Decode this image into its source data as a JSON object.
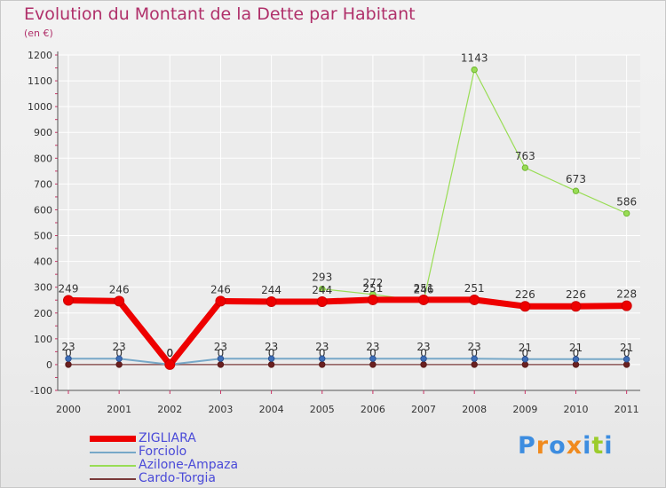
{
  "header": {
    "title": "Evolution du Montant de la Dette par Habitant",
    "subtitle": "(en €)"
  },
  "brand": {
    "logo_text": "Proxiti"
  },
  "colors": {
    "title": "#b0306a",
    "legend_text": "#4a4ad8",
    "zigliara": "#ee0000",
    "forciolo": "#77a8c8",
    "azilone": "#99dd55",
    "cardo": "#7a3a3a",
    "logo_letters": [
      "#3d8de0",
      "#f08a1e",
      "#3d8de0",
      "#f08a1e",
      "#3d8de0",
      "#9ccc2c",
      "#3d8de0"
    ]
  },
  "chart_data": {
    "type": "line",
    "title": "Evolution du Montant de la Dette par Habitant",
    "ylabel": "(en €)",
    "xlabel": "",
    "ylim": [
      -100,
      1200
    ],
    "yticks": [
      -100,
      0,
      100,
      200,
      300,
      400,
      500,
      600,
      700,
      800,
      900,
      1000,
      1100,
      1200
    ],
    "categories": [
      "2000",
      "2001",
      "2002",
      "2003",
      "2004",
      "2005",
      "2006",
      "2007",
      "2008",
      "2009",
      "2010",
      "2011"
    ],
    "legend_position": "bottom-left",
    "series": [
      {
        "name": "Azilone-Ampaza",
        "key": "azilone",
        "values": [
          null,
          null,
          null,
          null,
          null,
          293,
          272,
          246,
          1143,
          763,
          673,
          586
        ]
      },
      {
        "name": "Cardo-Torgia",
        "key": "cardo",
        "values": [
          0,
          0,
          0,
          0,
          0,
          0,
          0,
          0,
          0,
          0,
          0,
          0
        ]
      },
      {
        "name": "Forciolo",
        "key": "forciolo",
        "values": [
          23,
          23,
          0,
          23,
          23,
          23,
          23,
          23,
          23,
          21,
          21,
          21
        ]
      },
      {
        "name": "ZIGLIARA",
        "key": "zigliara",
        "values": [
          249,
          246,
          0,
          246,
          244,
          244,
          251,
          251,
          251,
          226,
          226,
          228
        ]
      }
    ],
    "legend": [
      "ZIGLIARA",
      "Forciolo",
      "Azilone-Ampaza",
      "Cardo-Torgia"
    ]
  }
}
